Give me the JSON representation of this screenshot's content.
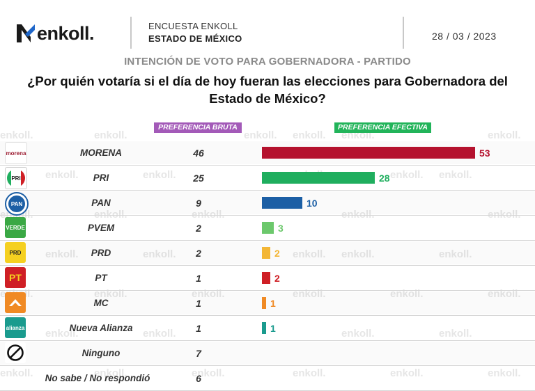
{
  "header": {
    "brand": "enkoll.",
    "survey_label": "ENCUESTA ENKOLL",
    "region": "ESTADO DE MÉXICO",
    "date": "28 / 03 / 2023"
  },
  "subtitle": "INTENCIÓN DE VOTO PARA GOBERNADORA - PARTIDO",
  "question_line1": "¿Por quién votaría si el día de hoy fueran las elecciones para Gobernadora del",
  "question_line2": "Estado de México?",
  "watermark": "enkoll.",
  "colors": {
    "bruta": "#a35ab8",
    "efectiva": "#22b45a"
  },
  "chart_data": {
    "type": "bar",
    "columns": {
      "bruta": "PREFERENCIA BRUTA",
      "efectiva": "PREFERENCIA EFECTIVA"
    },
    "categories": [
      "MORENA",
      "PRI",
      "PAN",
      "PVEM",
      "PRD",
      "PT",
      "MC",
      "Nueva Alianza",
      "Ninguno",
      "No sabe / No respondió"
    ],
    "series": [
      {
        "name": "PREFERENCIA BRUTA",
        "values": [
          46,
          25,
          9,
          2,
          2,
          1,
          1,
          1,
          7,
          6
        ]
      },
      {
        "name": "PREFERENCIA EFECTIVA",
        "values": [
          53,
          28,
          10,
          3,
          2,
          2,
          1,
          1,
          null,
          null
        ]
      }
    ],
    "bar_colors": [
      "#b5122e",
      "#1fae5e",
      "#1c5fa5",
      "#6cc86c",
      "#f3b635",
      "#cf1f25",
      "#f08a24",
      "#1a9b8e"
    ],
    "label_colors": [
      "#b5122e",
      "#1fae5e",
      "#1c5fa5",
      "#6cc86c",
      "#f3b635",
      "#cf1f25",
      "#f08a24",
      "#1a9b8e"
    ],
    "logos": [
      {
        "icon": "morena-logo-icon",
        "text": "morena",
        "color": "#9b1b30",
        "bg": "#ffffff"
      },
      {
        "icon": "pri-logo-icon",
        "text": "PRI",
        "color": "#1fae5e",
        "bg": "#ffffff"
      },
      {
        "icon": "pan-logo-icon",
        "text": "PAN",
        "color": "#ffffff",
        "bg": "#1c5fa5"
      },
      {
        "icon": "pvem-logo-icon",
        "text": "VERDE",
        "color": "#ffffff",
        "bg": "#3aa844"
      },
      {
        "icon": "prd-logo-icon",
        "text": "PRD",
        "color": "#222222",
        "bg": "#f5d020"
      },
      {
        "icon": "pt-logo-icon",
        "text": "PT",
        "color": "#f5d020",
        "bg": "#cf1f25"
      },
      {
        "icon": "mc-logo-icon",
        "text": "",
        "color": "#ffffff",
        "bg": "#f08a24"
      },
      {
        "icon": "nueva-alianza-logo-icon",
        "text": "alianza",
        "color": "#ffffff",
        "bg": "#1a9b8e"
      },
      {
        "icon": "ninguno-icon",
        "text": "",
        "color": "#111111",
        "bg": "#ffffff"
      },
      {
        "icon": "",
        "text": "",
        "color": "",
        "bg": ""
      }
    ],
    "xlim": [
      0,
      53
    ]
  }
}
